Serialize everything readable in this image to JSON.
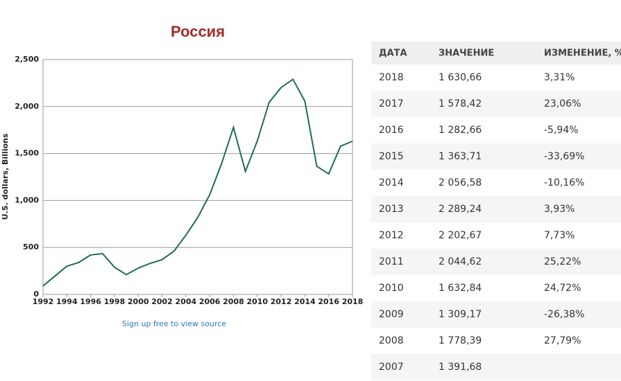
{
  "chart_data": {
    "type": "line",
    "title": "Россия",
    "y_label": "U.S. dollars, Billions",
    "source_link": "Sign up free to view source",
    "x": [
      1992,
      1993,
      1994,
      1995,
      1996,
      1997,
      1998,
      1999,
      2000,
      2001,
      2002,
      2003,
      2004,
      2005,
      2006,
      2007,
      2008,
      2009,
      2010,
      2011,
      2012,
      2013,
      2014,
      2015,
      2016,
      2017,
      2018
    ],
    "values": [
      90,
      195,
      300,
      340,
      420,
      435,
      290,
      210,
      280,
      330,
      370,
      460,
      630,
      820,
      1060,
      1391.68,
      1778.39,
      1309.17,
      1632.84,
      2044.62,
      2202.67,
      2289.24,
      2056.58,
      1363.71,
      1282.66,
      1578.42,
      1630.66
    ],
    "color": "#1e6b4f",
    "xlim": [
      1992,
      2018
    ],
    "xticks": [
      1992,
      1994,
      1996,
      1998,
      2000,
      2002,
      2004,
      2006,
      2008,
      2010,
      2012,
      2014,
      2016,
      2018
    ],
    "ylim": [
      0,
      2500
    ],
    "yticks": [
      0,
      500,
      {
        "value": 1000,
        "label": "1,000"
      },
      {
        "value": 1500,
        "label": "1,500"
      },
      {
        "value": 2000,
        "label": "2,000"
      },
      {
        "value": 2500,
        "label": "2,500"
      }
    ],
    "grid": true
  },
  "table": {
    "header": [
      "ДАТА",
      "ЗНАЧЕНИЕ",
      "ИЗМЕНЕНИЕ, %"
    ],
    "rows": [
      [
        "2018",
        "1 630,66",
        "3,31%"
      ],
      [
        "2017",
        "1 578,42",
        "23,06%"
      ],
      [
        "2016",
        "1 282,66",
        "-5,94%"
      ],
      [
        "2015",
        "1 363,71",
        "-33,69%"
      ],
      [
        "2014",
        "2 056,58",
        "-10,16%"
      ],
      [
        "2013",
        "2 289,24",
        "3,93%"
      ],
      [
        "2012",
        "2 202,67",
        "7,73%"
      ],
      [
        "2011",
        "2 044,62",
        "25,22%"
      ],
      [
        "2010",
        "1 632,84",
        "24,72%"
      ],
      [
        "2009",
        "1 309,17",
        "-26,38%"
      ],
      [
        "2008",
        "1 778,39",
        "27,79%"
      ],
      [
        "2007",
        "1 391,68"
      ]
    ]
  }
}
